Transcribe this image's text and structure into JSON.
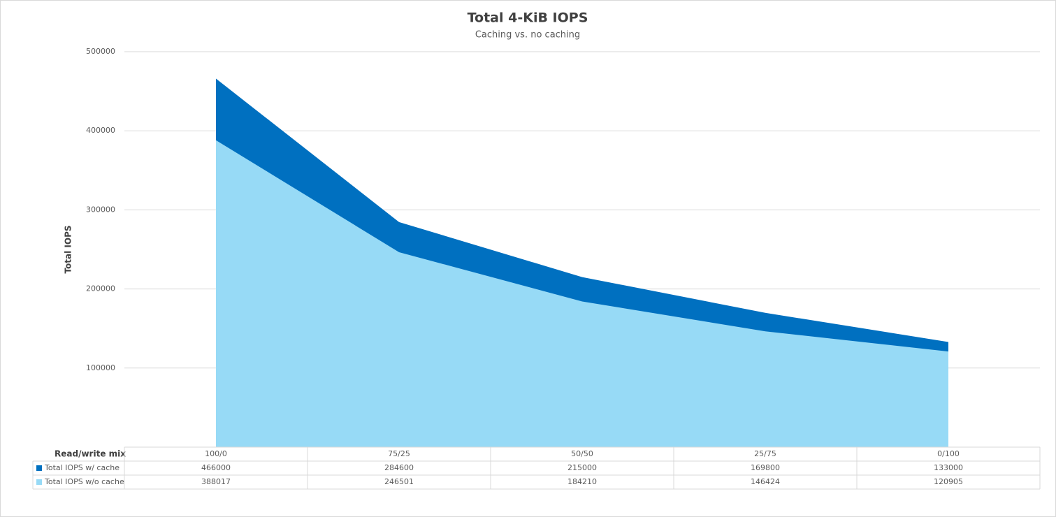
{
  "chart_data": {
    "type": "area",
    "title": "Total 4-KiB IOPS",
    "subtitle": "Caching vs. no caching",
    "y_label": "Total IOPS",
    "x_label": "Read/write mix",
    "categories": [
      "100/0",
      "75/25",
      "50/50",
      "25/75",
      "0/100"
    ],
    "series": [
      {
        "name": "Total IOPS w/ cache",
        "color": "#0070c0",
        "values": [
          466000,
          284600,
          215000,
          169800,
          133000
        ]
      },
      {
        "name": "Total IOPS w/o cache",
        "color": "#97daf6",
        "values": [
          388017,
          246501,
          184210,
          146424,
          120905
        ]
      }
    ],
    "ylim": [
      0,
      500000
    ],
    "yticks": [
      100000,
      200000,
      300000,
      400000,
      500000
    ],
    "grid": true
  }
}
